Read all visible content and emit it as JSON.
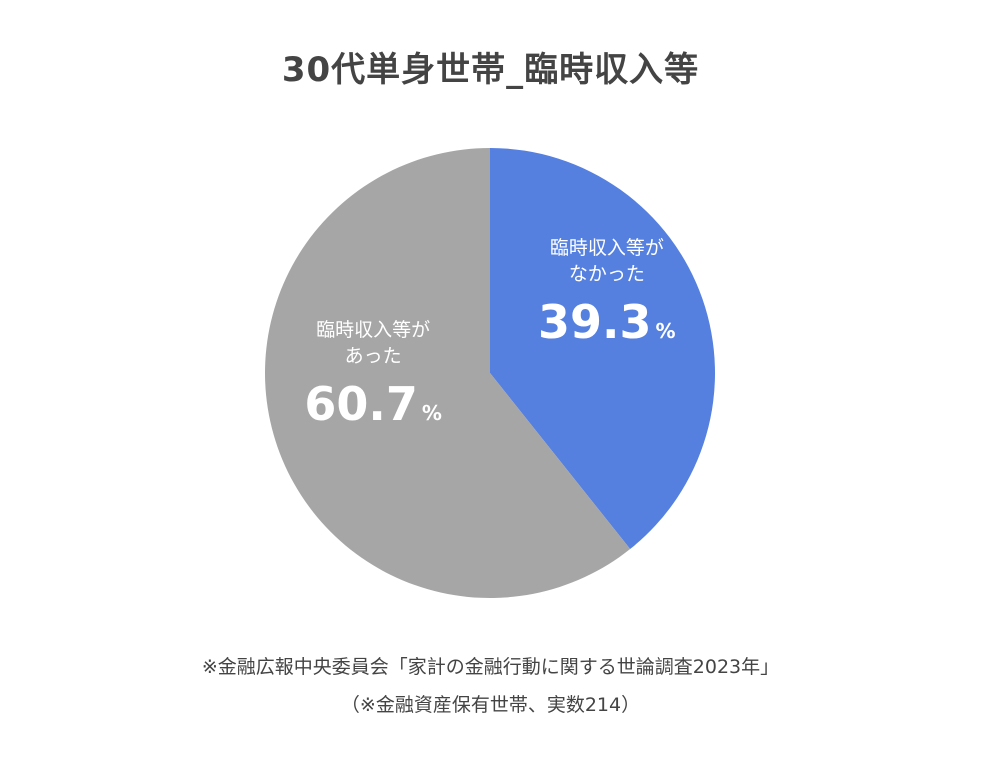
{
  "chart_data": {
    "type": "pie",
    "title": "30代単身世帯_臨時収入等",
    "slices": [
      {
        "label_lines": [
          "臨時収入等が",
          "なかった"
        ],
        "value": 39.3,
        "value_text": "39.3",
        "unit": "%",
        "color": "#5580E0"
      },
      {
        "label_lines": [
          "臨時収入等が",
          "あった"
        ],
        "value": 60.7,
        "value_text": "60.7",
        "unit": "%",
        "color": "#A6A6A6"
      }
    ]
  },
  "source": {
    "line1": "※金融広報中央委員会「家計の金融行動に関する世論調査2023年」",
    "line2": "（※金融資産保有世帯、実数214）"
  }
}
